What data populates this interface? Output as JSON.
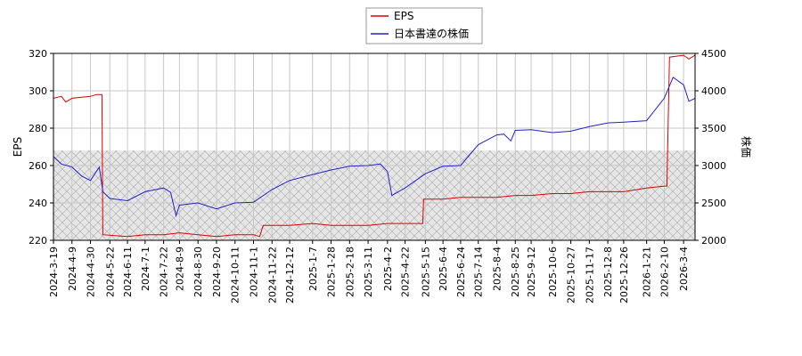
{
  "chart_data": {
    "type": "line",
    "legend": {
      "position": "top-center",
      "entries": [
        "EPS",
        "日本書達の株価"
      ]
    },
    "colors": {
      "EPS": "#dd0000",
      "price": "#2222cc",
      "hatch_fill": "#cccccc",
      "grid": "#c8c8c8"
    },
    "y_left": {
      "label": "EPS",
      "ylim": [
        220,
        320
      ],
      "ticks": [
        "220",
        "240",
        "260",
        "280",
        "300",
        "320"
      ]
    },
    "y_right": {
      "label": "株価",
      "ylim": [
        2000,
        4500
      ],
      "ticks": [
        "2000",
        "2500",
        "3000",
        "3500",
        "4000",
        "4500"
      ]
    },
    "x_ticks": [
      "2024-3-19",
      "2024-4-9",
      "2024-4-30",
      "2024-5-22",
      "2024-6-11",
      "2024-7-1",
      "2024-7-22",
      "2024-8-9",
      "2024-8-30",
      "2024-9-20",
      "2024-10-11",
      "2024-11-1",
      "2024-11-22",
      "2024-12-12",
      "2025-1-7",
      "2025-1-28",
      "2025-2-18",
      "2025-3-11",
      "2025-4-2",
      "2025-4-22",
      "2025-5-15",
      "2025-6-4",
      "2025-6-24",
      "2025-7-14",
      "2025-8-4",
      "2025-8-25",
      "2025-9-12",
      "2025-10-6",
      "2025-10-27",
      "2025-11-17",
      "2025-12-8",
      "2025-12-26",
      "2026-1-21",
      "2026-2-10",
      "2026-3-4"
    ],
    "hatch_region": {
      "y_from": 220,
      "y_to": 268
    },
    "series": [
      {
        "name": "EPS",
        "axis": "left",
        "points": [
          [
            "2024-3-19",
            296
          ],
          [
            "2024-3-28",
            297
          ],
          [
            "2024-4-2",
            294
          ],
          [
            "2024-4-9",
            296
          ],
          [
            "2024-4-30",
            297
          ],
          [
            "2024-5-7",
            298
          ],
          [
            "2024-5-13",
            298
          ],
          [
            "2024-5-14",
            223
          ],
          [
            "2024-6-11",
            222
          ],
          [
            "2024-7-1",
            223
          ],
          [
            "2024-7-22",
            223
          ],
          [
            "2024-8-9",
            224
          ],
          [
            "2024-8-30",
            223
          ],
          [
            "2024-9-20",
            222
          ],
          [
            "2024-10-11",
            223
          ],
          [
            "2024-11-1",
            223
          ],
          [
            "2024-11-8",
            222
          ],
          [
            "2024-11-12",
            228
          ],
          [
            "2024-11-22",
            228
          ],
          [
            "2024-12-12",
            228
          ],
          [
            "2025-1-7",
            229
          ],
          [
            "2025-1-28",
            228
          ],
          [
            "2025-2-18",
            228
          ],
          [
            "2025-3-11",
            228
          ],
          [
            "2025-4-2",
            229
          ],
          [
            "2025-4-22",
            229
          ],
          [
            "2025-5-12",
            229
          ],
          [
            "2025-5-13",
            242
          ],
          [
            "2025-5-15",
            242
          ],
          [
            "2025-6-4",
            242
          ],
          [
            "2025-6-24",
            243
          ],
          [
            "2025-7-14",
            243
          ],
          [
            "2025-8-4",
            243
          ],
          [
            "2025-8-25",
            244
          ],
          [
            "2025-9-12",
            244
          ],
          [
            "2025-10-6",
            245
          ],
          [
            "2025-10-27",
            245
          ],
          [
            "2025-11-17",
            246
          ],
          [
            "2025-12-8",
            246
          ],
          [
            "2025-12-26",
            246
          ],
          [
            "2026-1-21",
            248
          ],
          [
            "2026-2-10",
            249
          ],
          [
            "2026-2-13",
            249
          ],
          [
            "2026-2-16",
            318
          ],
          [
            "2026-3-4",
            319
          ],
          [
            "2026-3-10",
            317
          ],
          [
            "2026-3-17",
            319
          ]
        ]
      },
      {
        "name": "日本書達の株価",
        "axis": "right",
        "points": [
          [
            "2024-3-19",
            3120
          ],
          [
            "2024-3-28",
            3020
          ],
          [
            "2024-4-9",
            2980
          ],
          [
            "2024-4-20",
            2860
          ],
          [
            "2024-4-30",
            2800
          ],
          [
            "2024-5-10",
            2980
          ],
          [
            "2024-5-14",
            2650
          ],
          [
            "2024-5-22",
            2560
          ],
          [
            "2024-6-11",
            2530
          ],
          [
            "2024-7-1",
            2650
          ],
          [
            "2024-7-22",
            2700
          ],
          [
            "2024-7-30",
            2640
          ],
          [
            "2024-8-5",
            2330
          ],
          [
            "2024-8-9",
            2470
          ],
          [
            "2024-8-30",
            2500
          ],
          [
            "2024-9-20",
            2420
          ],
          [
            "2024-10-11",
            2500
          ],
          [
            "2024-11-1",
            2510
          ],
          [
            "2024-11-22",
            2680
          ],
          [
            "2024-12-12",
            2800
          ],
          [
            "2025-1-7",
            2880
          ],
          [
            "2025-1-28",
            2940
          ],
          [
            "2025-2-18",
            2990
          ],
          [
            "2025-3-11",
            3000
          ],
          [
            "2025-3-25",
            3020
          ],
          [
            "2025-4-2",
            2920
          ],
          [
            "2025-4-7",
            2600
          ],
          [
            "2025-4-22",
            2700
          ],
          [
            "2025-5-15",
            2890
          ],
          [
            "2025-6-4",
            2990
          ],
          [
            "2025-6-24",
            3000
          ],
          [
            "2025-7-14",
            3280
          ],
          [
            "2025-8-4",
            3410
          ],
          [
            "2025-8-12",
            3420
          ],
          [
            "2025-8-20",
            3330
          ],
          [
            "2025-8-25",
            3470
          ],
          [
            "2025-9-12",
            3480
          ],
          [
            "2025-10-6",
            3440
          ],
          [
            "2025-10-27",
            3460
          ],
          [
            "2025-11-17",
            3520
          ],
          [
            "2025-12-8",
            3570
          ],
          [
            "2025-12-26",
            3580
          ],
          [
            "2026-1-21",
            3600
          ],
          [
            "2026-2-10",
            3900
          ],
          [
            "2026-2-20",
            4180
          ],
          [
            "2026-3-4",
            4080
          ],
          [
            "2026-3-10",
            3860
          ],
          [
            "2026-3-17",
            3900
          ]
        ]
      }
    ]
  }
}
